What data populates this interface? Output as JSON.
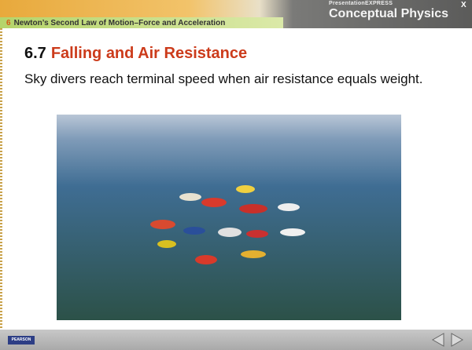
{
  "header": {
    "chapter_number": "6",
    "chapter_title": "Newton’s Second Law of Motion–Force and Acceleration",
    "brand_small": "PresentationEXPRESS",
    "brand": "Conceptual Physics",
    "close": "X"
  },
  "slide": {
    "section": "6.7",
    "title": "Falling and Air Resistance",
    "body": "Sky divers reach terminal speed when air resistance equals weight."
  },
  "footer": {
    "logo": "PEARSON"
  }
}
